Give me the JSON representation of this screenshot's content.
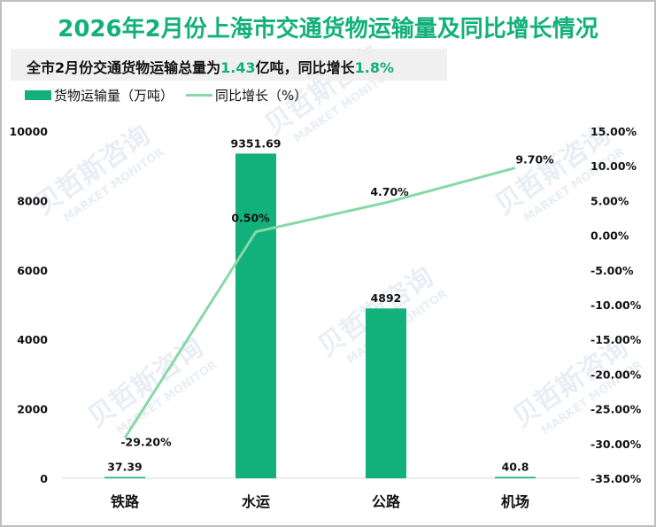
{
  "header": {
    "title": "2026年2月份上海市交通货物运输量及同比增长情况",
    "subtitle_parts": [
      "全市2月份交通货物运输总量为",
      "1.43",
      "亿吨，同比增长",
      "1.8%"
    ]
  },
  "legend": {
    "bar_label": "货物运输量（万吨）",
    "line_label": "同比增长（%）"
  },
  "watermark": {
    "cn": "贝哲斯咨询",
    "en": "MARKET MONITOR"
  },
  "colors": {
    "title": "#12b07a",
    "bar": "#12b07a",
    "line": "#88d8a8",
    "border": "#bfbfbf",
    "subtitle_bg": "#f0f0f0"
  },
  "chart_data": {
    "type": "bar",
    "title": "2026年2月份上海市交通货物运输量及同比增长情况",
    "subtitle": "全市2月份交通货物运输总量为1.43亿吨，同比增长1.8%",
    "categories": [
      "铁路",
      "水运",
      "公路",
      "机场"
    ],
    "series": [
      {
        "name": "货物运输量（万吨）",
        "type": "bar",
        "axis": "left",
        "values": [
          37.39,
          9351.69,
          4892,
          40.8
        ],
        "labels": [
          "37.39",
          "9351.69",
          "4892",
          "40.8"
        ]
      },
      {
        "name": "同比增长（%）",
        "type": "line",
        "axis": "right",
        "values": [
          -29.2,
          0.5,
          4.7,
          9.7
        ],
        "labels": [
          "-29.20%",
          "0.50%",
          "4.70%",
          "9.70%"
        ]
      }
    ],
    "left_axis": {
      "ylim": [
        0,
        10000
      ],
      "ticks": [
        "0",
        "2000",
        "4000",
        "6000",
        "8000",
        "10000"
      ]
    },
    "right_axis": {
      "ylim": [
        -35,
        15
      ],
      "ticks": [
        "15.00%",
        "10.00%",
        "5.00%",
        "0.00%",
        "-5.00%",
        "-10.00%",
        "-15.00%",
        "-20.00%",
        "-25.00%",
        "-30.00%",
        "-35.00%"
      ]
    },
    "xlabel": "",
    "ylabel": "",
    "grid": false,
    "legend_position": "top-left"
  }
}
